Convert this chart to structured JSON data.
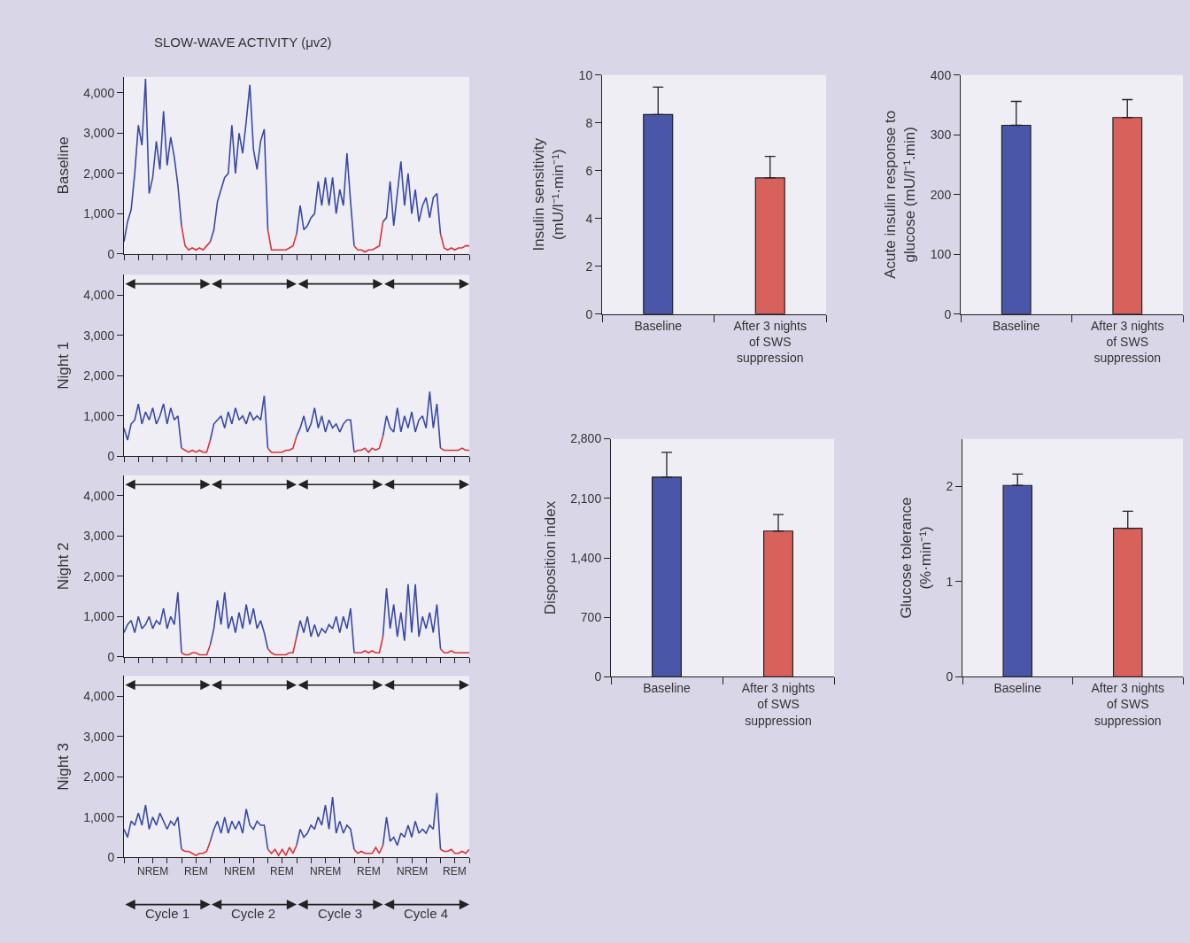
{
  "chart_data": [
    {
      "type": "line",
      "title": "SLOW-WAVE ACTIVITY (μv2)",
      "ylabel": "Baseline",
      "ylim": [
        0,
        4400
      ],
      "yticks": [
        0,
        {
          "value": 1000,
          "label": "1,000"
        },
        {
          "value": 2000,
          "label": "2,000"
        },
        {
          "value": 3000,
          "label": "3,000"
        },
        {
          "value": 4000,
          "label": "4,000"
        }
      ],
      "categories": [
        null,
        null,
        null,
        null,
        null,
        null,
        null,
        null,
        null,
        null,
        null,
        null,
        null,
        null,
        null,
        null,
        null,
        null,
        null,
        null,
        null,
        null,
        null,
        null,
        null,
        null,
        null,
        null,
        null,
        null,
        null,
        null,
        null,
        null,
        null,
        null,
        null,
        null,
        null,
        null,
        null,
        null,
        null,
        null,
        null,
        null,
        null,
        null,
        null,
        null,
        null,
        null,
        null,
        null,
        null,
        null,
        null,
        null,
        null,
        null,
        null,
        null,
        null,
        null,
        null,
        null,
        null,
        null,
        null,
        null,
        null,
        null,
        null,
        null,
        null,
        null,
        null,
        null,
        null,
        null,
        null,
        null,
        null,
        null,
        null,
        null,
        null,
        null,
        null,
        null,
        null,
        null,
        null,
        null,
        null,
        null,
        null
      ],
      "series": [
        {
          "color": "#3a49a3",
          "values": [
            300,
            800,
            1100,
            2000,
            3200,
            2700,
            4350,
            1500,
            1900,
            2800,
            2100,
            3550,
            2200,
            2900,
            2400,
            1700,
            700,
            null,
            null,
            null,
            null,
            null,
            null,
            null,
            300,
            600,
            1300,
            1600,
            1900,
            2000,
            3200,
            2000,
            3000,
            2500,
            3300,
            4200,
            2600,
            2100,
            2800,
            3100,
            600,
            null,
            null,
            null,
            null,
            null,
            null,
            null,
            500,
            1200,
            600,
            700,
            900,
            1000,
            1800,
            1200,
            1900,
            1200,
            1900,
            1000,
            1600,
            1200,
            2500,
            1300,
            200,
            null,
            null,
            null,
            null,
            null,
            null,
            null,
            800,
            900,
            1800,
            700,
            1500,
            2300,
            1200,
            2000,
            1000,
            1600,
            800,
            1200,
            1400,
            900,
            1400,
            1500,
            500,
            null,
            null,
            null,
            null,
            null,
            null,
            null,
            null
          ]
        },
        {
          "color": "#d8343a",
          "values": [
            null,
            null,
            null,
            null,
            null,
            null,
            null,
            null,
            null,
            null,
            null,
            null,
            null,
            null,
            null,
            null,
            700,
            200,
            100,
            150,
            100,
            150,
            100,
            200,
            300,
            null,
            null,
            null,
            null,
            null,
            null,
            null,
            null,
            null,
            null,
            null,
            null,
            null,
            null,
            null,
            600,
            100,
            100,
            100,
            100,
            100,
            150,
            200,
            500,
            null,
            null,
            null,
            null,
            null,
            null,
            null,
            null,
            null,
            null,
            null,
            null,
            null,
            null,
            null,
            200,
            100,
            100,
            50,
            100,
            100,
            150,
            200,
            800,
            null,
            null,
            null,
            null,
            null,
            null,
            null,
            null,
            null,
            null,
            null,
            null,
            null,
            null,
            null,
            500,
            150,
            100,
            150,
            100,
            150,
            150,
            200,
            200
          ]
        }
      ]
    },
    {
      "type": "line",
      "ylabel": "Night 1",
      "ylim": [
        0,
        4500
      ],
      "yticks": [
        0,
        {
          "value": 1000,
          "label": "1,000"
        },
        {
          "value": 2000,
          "label": "2,000"
        },
        {
          "value": 3000,
          "label": "3,000"
        },
        {
          "value": 4000,
          "label": "4,000"
        }
      ],
      "categories": [
        null,
        null,
        null,
        null,
        null,
        null,
        null,
        null,
        null,
        null,
        null,
        null,
        null,
        null,
        null,
        null,
        null,
        null,
        null,
        null,
        null,
        null,
        null,
        null,
        null,
        null,
        null,
        null,
        null,
        null,
        null,
        null,
        null,
        null,
        null,
        null,
        null,
        null,
        null,
        null,
        null,
        null,
        null,
        null,
        null,
        null,
        null,
        null,
        null,
        null,
        null,
        null,
        null,
        null,
        null,
        null,
        null,
        null,
        null,
        null,
        null,
        null,
        null,
        null,
        null,
        null,
        null,
        null,
        null,
        null,
        null,
        null,
        null,
        null,
        null,
        null,
        null,
        null,
        null,
        null,
        null,
        null,
        null,
        null,
        null,
        null,
        null,
        null,
        null,
        null,
        null,
        null,
        null,
        null,
        null,
        null,
        null
      ],
      "series": [
        {
          "color": "#3a49a3",
          "values": [
            700,
            400,
            800,
            900,
            1300,
            800,
            1100,
            900,
            1200,
            800,
            1000,
            1300,
            800,
            1200,
            900,
            1000,
            200,
            null,
            null,
            null,
            null,
            null,
            null,
            null,
            400,
            800,
            900,
            1000,
            700,
            1100,
            800,
            1200,
            900,
            1000,
            800,
            1100,
            900,
            1000,
            900,
            1500,
            200,
            null,
            null,
            null,
            null,
            null,
            null,
            null,
            500,
            700,
            1000,
            600,
            800,
            1200,
            700,
            1000,
            600,
            900,
            700,
            800,
            600,
            800,
            900,
            900,
            100,
            null,
            null,
            null,
            null,
            null,
            null,
            null,
            500,
            1000,
            700,
            600,
            1200,
            600,
            1000,
            700,
            1100,
            600,
            900,
            1000,
            700,
            1600,
            700,
            1300,
            200,
            null,
            null,
            null,
            null,
            null,
            null,
            null,
            null
          ]
        },
        {
          "color": "#d8343a",
          "values": [
            null,
            null,
            null,
            null,
            null,
            null,
            null,
            null,
            null,
            null,
            null,
            null,
            null,
            null,
            null,
            null,
            200,
            150,
            100,
            150,
            100,
            150,
            100,
            100,
            400,
            null,
            null,
            null,
            null,
            null,
            null,
            null,
            null,
            null,
            null,
            null,
            null,
            null,
            null,
            null,
            200,
            100,
            100,
            100,
            100,
            150,
            150,
            200,
            500,
            null,
            null,
            null,
            null,
            null,
            null,
            null,
            null,
            null,
            null,
            null,
            null,
            null,
            null,
            null,
            100,
            150,
            150,
            200,
            100,
            200,
            150,
            200,
            500,
            null,
            null,
            null,
            null,
            null,
            null,
            null,
            null,
            null,
            null,
            null,
            null,
            null,
            null,
            null,
            200,
            150,
            150,
            150,
            150,
            150,
            200,
            150,
            150
          ]
        }
      ]
    },
    {
      "type": "line",
      "ylabel": "Night 2",
      "ylim": [
        0,
        4500
      ],
      "yticks": [
        0,
        {
          "value": 1000,
          "label": "1,000"
        },
        {
          "value": 2000,
          "label": "2,000"
        },
        {
          "value": 3000,
          "label": "3,000"
        },
        {
          "value": 4000,
          "label": "4,000"
        }
      ],
      "categories": [
        null,
        null,
        null,
        null,
        null,
        null,
        null,
        null,
        null,
        null,
        null,
        null,
        null,
        null,
        null,
        null,
        null,
        null,
        null,
        null,
        null,
        null,
        null,
        null,
        null,
        null,
        null,
        null,
        null,
        null,
        null,
        null,
        null,
        null,
        null,
        null,
        null,
        null,
        null,
        null,
        null,
        null,
        null,
        null,
        null,
        null,
        null,
        null,
        null,
        null,
        null,
        null,
        null,
        null,
        null,
        null,
        null,
        null,
        null,
        null,
        null,
        null,
        null,
        null,
        null,
        null,
        null,
        null,
        null,
        null,
        null,
        null,
        null,
        null,
        null,
        null,
        null,
        null,
        null,
        null,
        null,
        null,
        null,
        null,
        null,
        null,
        null,
        null,
        null,
        null,
        null,
        null,
        null,
        null,
        null,
        null,
        null
      ],
      "series": [
        {
          "color": "#3a49a3",
          "values": [
            600,
            800,
            900,
            600,
            1000,
            700,
            800,
            1000,
            700,
            900,
            800,
            1200,
            700,
            1000,
            800,
            1600,
            100,
            null,
            null,
            null,
            null,
            null,
            null,
            null,
            300,
            700,
            1400,
            800,
            1600,
            700,
            1000,
            600,
            1100,
            700,
            1300,
            800,
            1200,
            700,
            900,
            600,
            200,
            null,
            null,
            null,
            null,
            null,
            null,
            null,
            500,
            900,
            600,
            1000,
            500,
            800,
            500,
            700,
            600,
            800,
            700,
            1000,
            600,
            1000,
            700,
            1200,
            100,
            null,
            null,
            null,
            null,
            null,
            null,
            null,
            500,
            1700,
            700,
            1300,
            500,
            1100,
            400,
            1800,
            600,
            1800,
            500,
            1000,
            700,
            1100,
            600,
            1300,
            200,
            null,
            null,
            null,
            null,
            null,
            null,
            null,
            null
          ]
        },
        {
          "color": "#d8343a",
          "values": [
            null,
            null,
            null,
            null,
            null,
            null,
            null,
            null,
            null,
            null,
            null,
            null,
            null,
            null,
            null,
            null,
            100,
            50,
            50,
            100,
            100,
            50,
            50,
            50,
            300,
            null,
            null,
            null,
            null,
            null,
            null,
            null,
            null,
            null,
            null,
            null,
            null,
            null,
            null,
            null,
            200,
            100,
            50,
            50,
            50,
            50,
            100,
            100,
            500,
            null,
            null,
            null,
            null,
            null,
            null,
            null,
            null,
            null,
            null,
            null,
            null,
            null,
            null,
            null,
            100,
            100,
            100,
            150,
            100,
            150,
            100,
            100,
            500,
            null,
            null,
            null,
            null,
            null,
            null,
            null,
            null,
            null,
            null,
            null,
            null,
            null,
            null,
            null,
            200,
            100,
            100,
            150,
            100,
            100,
            100,
            100,
            100
          ]
        }
      ]
    },
    {
      "type": "line",
      "ylabel": "Night 3",
      "ylim": [
        0,
        4500
      ],
      "yticks": [
        0,
        {
          "value": 1000,
          "label": "1,000"
        },
        {
          "value": 2000,
          "label": "2,000"
        },
        {
          "value": 3000,
          "label": "3,000"
        },
        {
          "value": 4000,
          "label": "4,000"
        }
      ],
      "annotations": [
        "NREM",
        "REM",
        "NREM",
        "REM",
        "NREM",
        "REM",
        "NREM",
        "REM",
        "Cycle 1",
        "Cycle 2",
        "Cycle 3",
        "Cycle 4"
      ],
      "categories": [
        null,
        null,
        null,
        null,
        null,
        null,
        null,
        null,
        null,
        null,
        null,
        null,
        null,
        null,
        null,
        null,
        null,
        null,
        null,
        null,
        null,
        null,
        null,
        null,
        null,
        null,
        null,
        null,
        null,
        null,
        null,
        null,
        null,
        null,
        null,
        null,
        null,
        null,
        null,
        null,
        null,
        null,
        null,
        null,
        null,
        null,
        null,
        null,
        null,
        null,
        null,
        null,
        null,
        null,
        null,
        null,
        null,
        null,
        null,
        null,
        null,
        null,
        null,
        null,
        null,
        null,
        null,
        null,
        null,
        null,
        null,
        null,
        null,
        null,
        null,
        null,
        null,
        null,
        null,
        null,
        null,
        null,
        null,
        null,
        null,
        null,
        null,
        null,
        null,
        null,
        null,
        null,
        null,
        null,
        null,
        null,
        null
      ],
      "series": [
        {
          "color": "#3a49a3",
          "values": [
            700,
            500,
            900,
            800,
            1100,
            800,
            1300,
            700,
            1000,
            800,
            1100,
            900,
            700,
            900,
            800,
            1000,
            200,
            null,
            null,
            null,
            null,
            null,
            null,
            null,
            400,
            700,
            900,
            600,
            1000,
            600,
            900,
            700,
            900,
            600,
            1200,
            800,
            700,
            900,
            800,
            800,
            200,
            null,
            null,
            null,
            null,
            null,
            null,
            null,
            300,
            700,
            500,
            600,
            800,
            700,
            1000,
            800,
            1300,
            700,
            1500,
            600,
            900,
            600,
            800,
            700,
            200,
            null,
            null,
            null,
            null,
            null,
            null,
            null,
            300,
            1000,
            400,
            500,
            300,
            600,
            500,
            800,
            500,
            900,
            600,
            700,
            600,
            800,
            700,
            1600,
            200,
            null,
            null,
            null,
            null,
            null,
            null,
            null,
            null
          ]
        },
        {
          "color": "#d8343a",
          "values": [
            null,
            null,
            null,
            null,
            null,
            null,
            null,
            null,
            null,
            null,
            null,
            null,
            null,
            null,
            null,
            null,
            200,
            150,
            150,
            100,
            50,
            100,
            100,
            150,
            400,
            null,
            null,
            null,
            null,
            null,
            null,
            null,
            null,
            null,
            null,
            null,
            null,
            null,
            null,
            null,
            200,
            100,
            200,
            50,
            200,
            50,
            250,
            100,
            300,
            null,
            null,
            null,
            null,
            null,
            null,
            null,
            null,
            null,
            null,
            null,
            null,
            null,
            null,
            null,
            200,
            100,
            150,
            100,
            100,
            100,
            250,
            100,
            300,
            null,
            null,
            null,
            null,
            null,
            null,
            null,
            null,
            null,
            null,
            null,
            null,
            null,
            null,
            null,
            200,
            150,
            150,
            200,
            100,
            100,
            150,
            100,
            200
          ]
        }
      ]
    },
    {
      "type": "bar",
      "ylabel": "Insulin sensitivity\n(mU/l⁻¹·min⁻¹)",
      "categories": [
        "Baseline",
        "After 3 nights\nof SWS\nsuppression"
      ],
      "values": [
        8.35,
        5.7
      ],
      "colors": [
        "#4a56a8",
        "#d9615c"
      ],
      "errors": [
        [
          8.35,
          9.5
        ],
        [
          5.7,
          6.6
        ]
      ],
      "ylim": [
        0,
        10
      ],
      "yticks": [
        0,
        2,
        4,
        6,
        8,
        10
      ]
    },
    {
      "type": "bar",
      "ylabel": "Acute insulin response to\nglucose (mU/l⁻¹.min)",
      "categories": [
        "Baseline",
        "After 3 nights\nof SWS\nsuppression"
      ],
      "values": [
        316,
        329
      ],
      "colors": [
        "#4a56a8",
        "#d9615c"
      ],
      "errors": [
        [
          316,
          356
        ],
        [
          329,
          359
        ]
      ],
      "ylim": [
        0,
        400
      ],
      "yticks": [
        0,
        100,
        200,
        300,
        400
      ]
    },
    {
      "type": "bar",
      "ylabel": "Disposition index",
      "categories": [
        "Baseline",
        "After 3 nights\nof SWS\nsuppression"
      ],
      "values": [
        2350,
        1715
      ],
      "colors": [
        "#4a56a8",
        "#d9615c"
      ],
      "errors": [
        [
          2350,
          2640
        ],
        [
          1715,
          1910
        ]
      ],
      "ylim": [
        0,
        2800
      ],
      "yticks": [
        0,
        700,
        {
          "value": 1400,
          "label": "1,400"
        },
        {
          "value": 2100,
          "label": "2,100"
        },
        {
          "value": 2800,
          "label": "2,800"
        }
      ]
    },
    {
      "type": "bar",
      "ylabel": "Glucose tolerance\n(%·min⁻¹)",
      "categories": [
        "Baseline",
        "After 3 nights\nof SWS\nsuppression"
      ],
      "values": [
        2.01,
        1.56
      ],
      "colors": [
        "#4a56a8",
        "#d9615c"
      ],
      "errors": [
        [
          2.01,
          2.13
        ],
        [
          1.56,
          1.74
        ]
      ],
      "ylim": [
        0,
        2.5
      ],
      "yticks": [
        0,
        1,
        2
      ]
    }
  ]
}
